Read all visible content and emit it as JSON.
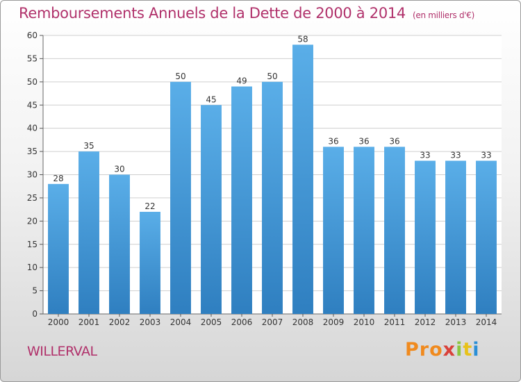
{
  "chart_data": {
    "type": "bar",
    "title": "Remboursements Annuels de la Dette de 2000 à 2014",
    "unit_note": "(en milliers d'€)",
    "categories": [
      "2000",
      "2001",
      "2002",
      "2003",
      "2004",
      "2005",
      "2006",
      "2007",
      "2008",
      "2009",
      "2010",
      "2011",
      "2012",
      "2013",
      "2014"
    ],
    "values": [
      28,
      35,
      30,
      22,
      50,
      45,
      49,
      50,
      58,
      36,
      36,
      36,
      33,
      33,
      33
    ],
    "ylim": [
      0,
      60
    ],
    "yticks": [
      0,
      5,
      10,
      15,
      20,
      25,
      30,
      35,
      40,
      45,
      50,
      55,
      60
    ],
    "grid": true,
    "bar_color_top": "#5aaee8",
    "bar_color_bottom": "#2f7fc0"
  },
  "footer": {
    "place": "WILLERVAL",
    "logo_parts": [
      "Pro",
      "x",
      "i",
      "t",
      "i"
    ]
  }
}
